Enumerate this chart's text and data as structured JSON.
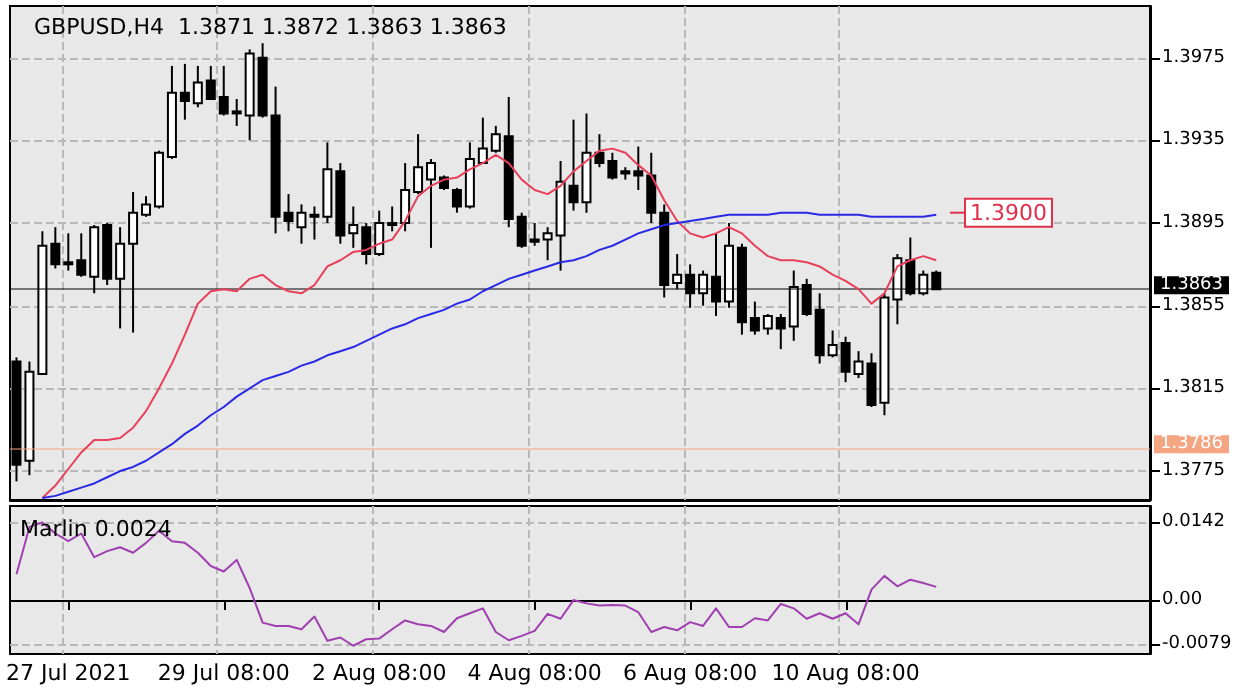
{
  "chart_data": [
    {
      "type": "candlestick",
      "title": "GBPUSD,H4  1.3871 1.3872 1.3863 1.3863",
      "categories": [
        null,
        null,
        null,
        null,
        null,
        null,
        null,
        null,
        null,
        null,
        null,
        null,
        null,
        null,
        null,
        null,
        null,
        null,
        null,
        null,
        null,
        null,
        null,
        null,
        null,
        null,
        null,
        null,
        null,
        null,
        null,
        null,
        null,
        null,
        null,
        null,
        null,
        null,
        null,
        null,
        null,
        null,
        null,
        null,
        null,
        null,
        null,
        null,
        null,
        null,
        null,
        null,
        null,
        null,
        null,
        null,
        null,
        null,
        null,
        null,
        null,
        null,
        null,
        null,
        null,
        null,
        null,
        null,
        null,
        null,
        null,
        null,
        null,
        null,
        null,
        null,
        null,
        null,
        null,
        null,
        null,
        null,
        null,
        null,
        null,
        null,
        null,
        null
      ],
      "ohlc": [
        [
          1.3828,
          1.383,
          1.377,
          1.3778
        ],
        [
          1.378,
          1.3828,
          1.3773,
          1.3823
        ],
        [
          1.3822,
          1.3891,
          1.3822,
          1.3884
        ],
        [
          1.3885,
          1.3893,
          1.3873,
          1.3875
        ],
        [
          1.3876,
          1.389,
          1.3872,
          1.3876
        ],
        [
          1.3877,
          1.389,
          1.3869,
          1.387
        ],
        [
          1.3869,
          1.3894,
          1.3861,
          1.3893
        ],
        [
          1.3894,
          1.3895,
          1.3865,
          1.3868
        ],
        [
          1.3868,
          1.3893,
          1.3844,
          1.3885
        ],
        [
          1.3885,
          1.391,
          1.3842,
          1.39
        ],
        [
          1.3899,
          1.3908,
          1.3898,
          1.3904
        ],
        [
          1.3903,
          1.393,
          1.3902,
          1.3929
        ],
        [
          1.3927,
          1.3971,
          1.3926,
          1.3958
        ],
        [
          1.3958,
          1.3972,
          1.3945,
          1.3954
        ],
        [
          1.3953,
          1.3971,
          1.3951,
          1.3963
        ],
        [
          1.3964,
          1.3971,
          1.3955,
          1.3955
        ],
        [
          1.3956,
          1.3971,
          1.3947,
          1.3948
        ],
        [
          1.3949,
          1.3955,
          1.3942,
          1.3949
        ],
        [
          1.3947,
          1.3979,
          1.3935,
          1.3977
        ],
        [
          1.3975,
          1.3982,
          1.3946,
          1.3947
        ],
        [
          1.3947,
          1.3961,
          1.389,
          1.3898
        ],
        [
          1.39,
          1.3909,
          1.3891,
          1.3896
        ],
        [
          1.3893,
          1.3904,
          1.3885,
          1.39
        ],
        [
          1.3899,
          1.3903,
          1.3887,
          1.3899
        ],
        [
          1.3898,
          1.3934,
          1.3895,
          1.3921
        ],
        [
          1.392,
          1.3924,
          1.3885,
          1.3889
        ],
        [
          1.389,
          1.3903,
          1.3883,
          1.3894
        ],
        [
          1.3893,
          1.3895,
          1.3875,
          1.388
        ],
        [
          1.388,
          1.3901,
          1.3879,
          1.3895
        ],
        [
          1.3895,
          1.3903,
          1.3891,
          1.3895
        ],
        [
          1.3895,
          1.3924,
          1.3891,
          1.3911
        ],
        [
          1.391,
          1.3938,
          1.3909,
          1.3922
        ],
        [
          1.3916,
          1.3926,
          1.3883,
          1.3924
        ],
        [
          1.3917,
          1.3918,
          1.3911,
          1.3912
        ],
        [
          1.3911,
          1.3912,
          1.39,
          1.3903
        ],
        [
          1.3903,
          1.3934,
          1.3902,
          1.3926
        ],
        [
          1.3924,
          1.3946,
          1.3924,
          1.3931
        ],
        [
          1.393,
          1.3942,
          1.3929,
          1.3938
        ],
        [
          1.3937,
          1.3956,
          1.3893,
          1.3897
        ],
        [
          1.3898,
          1.39,
          1.3883,
          1.3884
        ],
        [
          1.3887,
          1.3895,
          1.3884,
          1.3886
        ],
        [
          1.3887,
          1.3893,
          1.3877,
          1.389
        ],
        [
          1.3889,
          1.3925,
          1.3872,
          1.3915
        ],
        [
          1.3913,
          1.3945,
          1.3901,
          1.3905
        ],
        [
          1.3905,
          1.3948,
          1.39,
          1.3929
        ],
        [
          1.3929,
          1.3938,
          1.3922,
          1.3924
        ],
        [
          1.3925,
          1.3929,
          1.3916,
          1.3917
        ],
        [
          1.392,
          1.3922,
          1.3916,
          1.3919
        ],
        [
          1.392,
          1.3932,
          1.3911,
          1.3918
        ],
        [
          1.3918,
          1.3929,
          1.3895,
          1.39
        ],
        [
          1.39,
          1.3904,
          1.3859,
          1.3865
        ],
        [
          1.3866,
          1.388,
          1.3863,
          1.387
        ],
        [
          1.387,
          1.3875,
          1.3854,
          1.3861
        ],
        [
          1.3861,
          1.3872,
          1.3855,
          1.387
        ],
        [
          1.3869,
          1.389,
          1.385,
          1.3857
        ],
        [
          1.3857,
          1.3895,
          1.3854,
          1.3884
        ],
        [
          1.3883,
          1.3885,
          1.3841,
          1.3847
        ],
        [
          1.3849,
          1.3857,
          1.3841,
          1.3843
        ],
        [
          1.3844,
          1.3851,
          1.3841,
          1.385
        ],
        [
          1.3849,
          1.3851,
          1.3834,
          1.3844
        ],
        [
          1.3845,
          1.3872,
          1.3838,
          1.3864
        ],
        [
          1.3865,
          1.3868,
          1.385,
          1.3851
        ],
        [
          1.3853,
          1.3861,
          1.3827,
          1.3831
        ],
        [
          1.3831,
          1.3843,
          1.383,
          1.3836
        ],
        [
          1.3837,
          1.384,
          1.3818,
          1.3823
        ],
        [
          1.3822,
          1.3833,
          1.382,
          1.3828
        ],
        [
          1.3827,
          1.3832,
          1.3806,
          1.3807
        ],
        [
          1.3808,
          1.3861,
          1.3802,
          1.3859
        ],
        [
          1.3858,
          1.388,
          1.3846,
          1.3878
        ],
        [
          1.3877,
          1.3888,
          1.386,
          1.3861
        ],
        [
          1.3861,
          1.3872,
          1.386,
          1.387
        ],
        [
          1.3871,
          1.3872,
          1.3863,
          1.3863
        ],
        null,
        null,
        null,
        null,
        null,
        null,
        null,
        null,
        null,
        null,
        null,
        null,
        null,
        null,
        null,
        null
      ],
      "series": [
        {
          "type": "line",
          "color": "#e8405a",
          "values": [
            null,
            null,
            1.3762,
            1.3768,
            1.3776,
            1.3784,
            1.379,
            1.379,
            1.3791,
            1.3796,
            1.3804,
            1.3815,
            1.3827,
            1.3841,
            1.3856,
            1.3862,
            1.3863,
            1.3862,
            1.3868,
            1.387,
            1.3865,
            1.3862,
            1.3861,
            1.3865,
            1.3874,
            1.3877,
            1.3881,
            1.3882,
            1.3885,
            1.3887,
            1.3896,
            1.3908,
            1.3913,
            1.3916,
            1.3917,
            1.3921,
            1.3924,
            1.3928,
            1.3924,
            1.3916,
            1.3911,
            1.3909,
            1.3913,
            1.392,
            1.3925,
            1.393,
            1.3931,
            1.3929,
            1.3923,
            1.3918,
            1.3906,
            1.3896,
            1.389,
            1.3888,
            1.389,
            1.3893,
            1.389,
            1.3884,
            1.3879,
            1.3877,
            1.3877,
            1.3876,
            1.3874,
            1.387,
            1.3867,
            1.3863,
            1.3856,
            1.3861,
            1.3874,
            1.3877,
            1.3879,
            1.3877,
            null,
            null,
            null,
            null,
            null,
            null,
            null,
            null,
            null,
            null,
            null,
            null,
            null,
            null,
            null,
            null
          ]
        },
        {
          "type": "line",
          "color": "#2a2ae6",
          "values": [
            null,
            null,
            1.3762,
            1.3763,
            1.3765,
            1.3767,
            1.3769,
            1.3772,
            1.3775,
            1.3777,
            1.378,
            1.3784,
            1.3788,
            1.3793,
            1.3797,
            1.3802,
            1.3806,
            1.3811,
            1.3815,
            1.3819,
            1.3821,
            1.3823,
            1.3826,
            1.3828,
            1.3831,
            1.3833,
            1.3835,
            1.3838,
            1.3841,
            1.3844,
            1.3846,
            1.3849,
            1.3851,
            1.3853,
            1.3856,
            1.3858,
            1.3862,
            1.3865,
            1.3868,
            1.387,
            1.3872,
            1.3874,
            1.3876,
            1.3877,
            1.3879,
            1.3882,
            1.3884,
            1.3887,
            1.389,
            1.3892,
            1.3894,
            1.3895,
            1.3896,
            1.3897,
            1.3898,
            1.3899,
            1.3899,
            1.3899,
            1.3899,
            1.39,
            1.39,
            1.39,
            1.3899,
            1.3899,
            1.3899,
            1.3899,
            1.3898,
            1.3898,
            1.3898,
            1.3898,
            1.3898,
            1.3899,
            null,
            null,
            null,
            null,
            null,
            null,
            null,
            null,
            null,
            null,
            null,
            null,
            null,
            null,
            null,
            null
          ]
        }
      ],
      "ylim": [
        1.3761,
        1.4
      ],
      "yticks": [
        1.3775,
        1.3815,
        1.3855,
        1.3895,
        1.3935,
        1.3975
      ],
      "ref_lines": [
        {
          "axis": "y",
          "value": 1.3786,
          "label": "1.3786",
          "color": "#f4a582"
        },
        {
          "axis": "y",
          "value": 1.3863,
          "label": "1.3863",
          "color": "#000000"
        }
      ],
      "annotations": [
        {
          "text": "1.3900",
          "y": 1.39
        }
      ],
      "grid": true,
      "marker": "none",
      "tick_labels": "y"
    },
    {
      "type": "line",
      "title": "Marlin 0.0024",
      "categories": [
        null,
        null,
        null,
        null,
        "27 Jul 2021",
        null,
        null,
        null,
        null,
        null,
        null,
        null,
        null,
        null,
        null,
        null,
        "29 Jul 08:00",
        null,
        null,
        null,
        null,
        null,
        null,
        null,
        null,
        null,
        null,
        null,
        "2 Aug 08:00",
        null,
        null,
        null,
        null,
        null,
        null,
        null,
        null,
        null,
        null,
        null,
        "4 Aug 08:00",
        null,
        null,
        null,
        null,
        null,
        null,
        null,
        null,
        null,
        null,
        null,
        "6 Aug 08:00",
        null,
        null,
        null,
        null,
        null,
        null,
        null,
        null,
        null,
        null,
        null,
        "10 Aug 08:00",
        null,
        null,
        null,
        null,
        null,
        null,
        null,
        null,
        null,
        null,
        null,
        null,
        null,
        null,
        null,
        null,
        null,
        null,
        null,
        null,
        null,
        null,
        null
      ],
      "series": [
        {
          "color": "#a040b0",
          "values": [
            0.0047,
            0.0133,
            0.0141,
            0.0121,
            0.0107,
            0.0121,
            0.0078,
            0.0089,
            0.0096,
            0.0086,
            0.0104,
            0.0126,
            0.0107,
            0.0104,
            0.0086,
            0.0062,
            0.0052,
            0.0073,
            0.0022,
            -0.0041,
            -0.0047,
            -0.0047,
            -0.0053,
            -0.003,
            -0.0074,
            -0.0068,
            -0.0083,
            -0.0071,
            -0.007,
            -0.0053,
            -0.0037,
            -0.0044,
            -0.0047,
            -0.0058,
            -0.0033,
            -0.0024,
            -0.0015,
            -0.0058,
            -0.0073,
            -0.0065,
            -0.0056,
            -0.0025,
            -0.0034,
            0.0,
            -0.0006,
            -0.001,
            -0.0009,
            -0.001,
            -0.0022,
            -0.0058,
            -0.0049,
            -0.0055,
            -0.004,
            -0.0047,
            -0.0015,
            -0.0049,
            -0.0049,
            -0.0033,
            -0.0037,
            -0.0007,
            -0.0015,
            -0.0034,
            -0.0024,
            -0.0034,
            -0.0024,
            -0.0044,
            0.0019,
            0.0044,
            0.0025,
            0.0037,
            0.0031,
            0.0024,
            null,
            null,
            null,
            null,
            null,
            null,
            null,
            null,
            null,
            null,
            null,
            null,
            null,
            null,
            null,
            null
          ]
        }
      ],
      "ylim": [
        -0.0098,
        0.0171
      ],
      "yticks": [
        -0.0079,
        {
          "value": 0,
          "label": "0.00"
        },
        0.0142
      ],
      "grid": true,
      "marker": "none"
    }
  ]
}
